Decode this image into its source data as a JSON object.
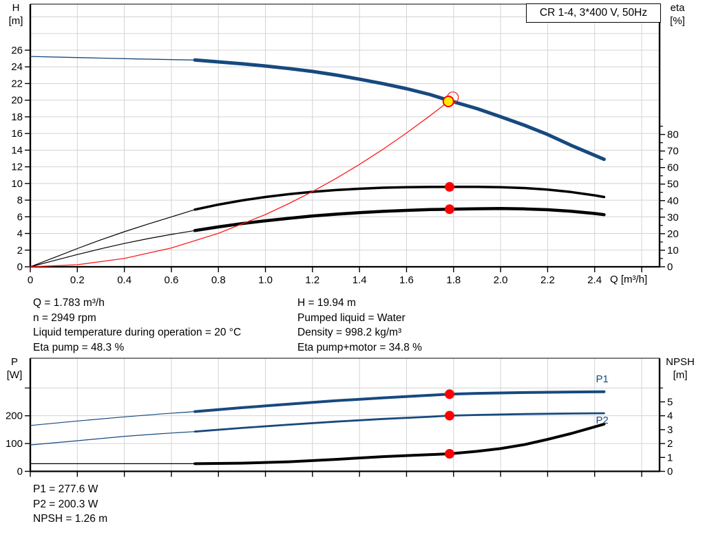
{
  "title_box": "CR 1-4, 3*400 V, 50Hz",
  "axis_titles": {
    "h1": "H",
    "h2": "[m]",
    "eta1": "eta",
    "eta2": "[%]",
    "p1": "P",
    "p2": "[W]",
    "npsh1": "NPSH",
    "npsh2": "[m]",
    "x": "Q [m³/h]"
  },
  "info": {
    "left": [
      "Q = 1.783 m³/h",
      "n = 2949 rpm",
      "Liquid temperature during operation = 20 °C",
      "Eta pump = 48.3 %"
    ],
    "right": [
      "H = 19.94 m",
      "Pumped liquid = Water",
      "Density = 998.2 kg/m³",
      "Eta pump+motor = 34.8 %"
    ],
    "bottom": [
      "P1 = 277.6 W",
      "P2 = 200.3 W",
      "NPSH = 1.26 m"
    ]
  },
  "colors": {
    "blue": "#17497E",
    "black": "#000000",
    "red": "#FF1A1A",
    "dot_red": "#FF0000",
    "duty_yellow": "#FFED00",
    "grid": "#D3D3D3"
  },
  "chart_data": [
    {
      "id": "hq-eta-chart",
      "type": "line",
      "title": "CR 1-4, 3*400 V, 50Hz",
      "xlabel": "Q [m³/h]",
      "ylabel_left": "H [m]",
      "ylabel_right": "eta [%]",
      "x": {
        "range": [
          0,
          2.676
        ],
        "grid": [
          0.2,
          0.4,
          0.6,
          0.8,
          1.0,
          1.2,
          1.4,
          1.6,
          1.8,
          2.0,
          2.2,
          2.4,
          2.6
        ],
        "tick_values": [
          0,
          0.2,
          0.4,
          0.6,
          0.8,
          1.0,
          1.2,
          1.4,
          1.6,
          1.8,
          2.0,
          2.2,
          2.4,
          2.6
        ],
        "tick_labels": [
          "0",
          "0.2",
          "0.4",
          "0.6",
          "0.8",
          "1.0",
          "1.2",
          "1.4",
          "1.6",
          "1.8",
          "2.0",
          "2.2",
          "2.4",
          ""
        ]
      },
      "left": {
        "range": [
          0,
          31.53
        ],
        "tick_values": [
          0,
          2,
          4,
          6,
          8,
          10,
          12,
          14,
          16,
          18,
          20,
          22,
          24,
          26
        ],
        "tick_labels": [
          "0",
          "2",
          "4",
          "6",
          "8",
          "10",
          "12",
          "14",
          "16",
          "18",
          "20",
          "22",
          "24",
          "26"
        ],
        "minor": [],
        "grid": [
          2,
          4,
          6,
          8,
          10,
          12,
          14,
          16,
          18,
          20,
          22,
          24,
          26,
          28,
          30
        ]
      },
      "right": {
        "range": [
          0,
          158.8
        ],
        "tick_values": [
          0,
          10,
          20,
          30,
          40,
          50,
          60,
          70,
          80
        ],
        "tick_labels": [
          "0",
          "10",
          "20",
          "30",
          "40",
          "50",
          "60",
          "70",
          "80"
        ],
        "minor": [
          5,
          15,
          25,
          35,
          45,
          55,
          65,
          75,
          85
        ],
        "grid": []
      },
      "series": [
        {
          "name": "qh-curve-thin",
          "axis": "left",
          "color": "#17497E",
          "width": 1.3,
          "points": [
            [
              0,
              25.25
            ],
            [
              0.15,
              25.15
            ],
            [
              0.3,
              25.05
            ],
            [
              0.45,
              24.95
            ],
            [
              0.6,
              24.87
            ],
            [
              0.7,
              24.82
            ]
          ]
        },
        {
          "name": "qh-curve",
          "axis": "left",
          "color": "#17497E",
          "width": 5,
          "points": [
            [
              0.7,
              24.82
            ],
            [
              0.8,
              24.6
            ],
            [
              0.9,
              24.37
            ],
            [
              1.0,
              24.1
            ],
            [
              1.1,
              23.8
            ],
            [
              1.2,
              23.45
            ],
            [
              1.3,
              23.02
            ],
            [
              1.4,
              22.52
            ],
            [
              1.5,
              21.98
            ],
            [
              1.6,
              21.38
            ],
            [
              1.7,
              20.68
            ],
            [
              1.783,
              19.94
            ],
            [
              1.9,
              18.98
            ],
            [
              2.0,
              18.02
            ],
            [
              2.1,
              17.0
            ],
            [
              2.2,
              15.88
            ],
            [
              2.3,
              14.58
            ],
            [
              2.44,
              12.9
            ]
          ]
        },
        {
          "name": "eta-pump-curve-thin",
          "axis": "right",
          "color": "#000000",
          "width": 1.2,
          "points": [
            [
              0,
              0
            ],
            [
              0.1,
              5.5
            ],
            [
              0.2,
              11
            ],
            [
              0.3,
              16.3
            ],
            [
              0.4,
              21.2
            ],
            [
              0.5,
              25.8
            ],
            [
              0.6,
              30.2
            ],
            [
              0.7,
              34.6
            ]
          ]
        },
        {
          "name": "eta-pump-curve",
          "axis": "right",
          "color": "#000000",
          "width": 3.5,
          "points": [
            [
              0.7,
              34.6
            ],
            [
              0.8,
              37.6
            ],
            [
              0.9,
              40.1
            ],
            [
              1.0,
              42.2
            ],
            [
              1.1,
              43.9
            ],
            [
              1.2,
              45.3
            ],
            [
              1.3,
              46.4
            ],
            [
              1.4,
              47.2
            ],
            [
              1.5,
              47.8
            ],
            [
              1.6,
              48.1
            ],
            [
              1.7,
              48.25
            ],
            [
              1.783,
              48.3
            ],
            [
              1.9,
              48.35
            ],
            [
              2.0,
              48.1
            ],
            [
              2.1,
              47.6
            ],
            [
              2.2,
              46.7
            ],
            [
              2.3,
              45.2
            ],
            [
              2.4,
              43.2
            ],
            [
              2.44,
              42.2
            ]
          ]
        },
        {
          "name": "eta-pump-motor-curve-thin",
          "axis": "right",
          "color": "#000000",
          "width": 1.2,
          "points": [
            [
              0,
              0
            ],
            [
              0.1,
              3.7
            ],
            [
              0.2,
              7.4
            ],
            [
              0.3,
              10.9
            ],
            [
              0.4,
              14.1
            ],
            [
              0.5,
              17.0
            ],
            [
              0.6,
              19.6
            ],
            [
              0.7,
              21.9
            ]
          ]
        },
        {
          "name": "eta-pump-motor-curve",
          "axis": "right",
          "color": "#000000",
          "width": 4.5,
          "points": [
            [
              0.7,
              21.9
            ],
            [
              0.8,
              24.1
            ],
            [
              0.9,
              26.1
            ],
            [
              1.0,
              27.8
            ],
            [
              1.1,
              29.3
            ],
            [
              1.2,
              30.7
            ],
            [
              1.3,
              31.8
            ],
            [
              1.4,
              32.7
            ],
            [
              1.5,
              33.5
            ],
            [
              1.6,
              34.1
            ],
            [
              1.7,
              34.6
            ],
            [
              1.783,
              34.8
            ],
            [
              1.9,
              35.1
            ],
            [
              2.0,
              35.2
            ],
            [
              2.1,
              35.0
            ],
            [
              2.2,
              34.5
            ],
            [
              2.3,
              33.6
            ],
            [
              2.4,
              32.2
            ],
            [
              2.44,
              31.5
            ]
          ]
        },
        {
          "name": "system-curve",
          "axis": "left",
          "color": "#FF1A1A",
          "width": 1.3,
          "points": [
            [
              0,
              0
            ],
            [
              0.2,
              0.25
            ],
            [
              0.4,
              1.0
            ],
            [
              0.6,
              2.26
            ],
            [
              0.8,
              4.01
            ],
            [
              1.0,
              6.27
            ],
            [
              1.1,
              7.59
            ],
            [
              1.2,
              9.03
            ],
            [
              1.3,
              10.6
            ],
            [
              1.4,
              12.29
            ],
            [
              1.5,
              14.11
            ],
            [
              1.6,
              16.06
            ],
            [
              1.7,
              18.13
            ],
            [
              1.783,
              19.94
            ]
          ]
        }
      ],
      "markers": [
        {
          "name": "duty-point-requested",
          "axis": "left",
          "q": 1.797,
          "v": 20.33,
          "r": 8,
          "fill": "none",
          "stroke": "#FF1A1A",
          "stroke_width": 1.2
        },
        {
          "name": "duty-point-actual",
          "axis": "left",
          "q": 1.778,
          "v": 19.85,
          "r": 7.5,
          "fill": "#FFED00",
          "stroke": "#FF0000",
          "stroke_width": 2
        },
        {
          "name": "eta-pump-operating-point",
          "axis": "right",
          "q": 1.783,
          "v": 48.3,
          "r": 7,
          "fill": "#FF0000",
          "stroke": "none",
          "stroke_width": 0
        },
        {
          "name": "eta-pump-motor-operating-point",
          "axis": "right",
          "q": 1.783,
          "v": 34.8,
          "r": 7,
          "fill": "#FF0000",
          "stroke": "none",
          "stroke_width": 0
        }
      ],
      "labels": []
    },
    {
      "id": "power-npsh-chart",
      "type": "line",
      "xlabel": "",
      "ylabel_left": "P [W]",
      "ylabel_right": "NPSH [m]",
      "x": {
        "range": [
          0,
          2.676
        ],
        "grid": [
          0.2,
          0.4,
          0.6,
          0.8,
          1.0,
          1.2,
          1.4,
          1.6,
          1.8,
          2.0,
          2.2,
          2.4,
          2.6
        ],
        "tick_values": [
          0,
          0.2,
          0.4,
          0.6,
          0.8,
          1.0,
          1.2,
          1.4,
          1.6,
          1.8,
          2.0,
          2.2,
          2.4,
          2.6
        ],
        "tick_labels": [
          "",
          "",
          "",
          "",
          "",
          "",
          "",
          "",
          "",
          "",
          "",
          "",
          "",
          ""
        ]
      },
      "left": {
        "range": [
          0,
          407
        ],
        "tick_values": [
          0,
          100,
          200
        ],
        "tick_labels": [
          "0",
          "100",
          "200"
        ],
        "minor": [
          300
        ],
        "grid": [
          100,
          200,
          300
        ]
      },
      "right": {
        "range": [
          0,
          8.14
        ],
        "tick_values": [
          0,
          1,
          2,
          3,
          4,
          5
        ],
        "tick_labels": [
          "0",
          "1",
          "2",
          "3",
          "4",
          "5"
        ],
        "minor": [
          6
        ],
        "grid": []
      },
      "series": [
        {
          "name": "p1-curve-thin",
          "axis": "left",
          "color": "#17497E",
          "width": 1.2,
          "points": [
            [
              0,
              165
            ],
            [
              0.2,
              181
            ],
            [
              0.4,
              196
            ],
            [
              0.55,
              206
            ],
            [
              0.7,
              215
            ]
          ]
        },
        {
          "name": "p1-curve",
          "axis": "left",
          "color": "#17497E",
          "width": 4,
          "points": [
            [
              0.7,
              215
            ],
            [
              0.9,
              229
            ],
            [
              1.1,
              242
            ],
            [
              1.3,
              254
            ],
            [
              1.5,
              264.5
            ],
            [
              1.65,
              271.5
            ],
            [
              1.783,
              277.6
            ],
            [
              1.9,
              280.5
            ],
            [
              2.1,
              283.5
            ],
            [
              2.3,
              285.5
            ],
            [
              2.44,
              286.5
            ]
          ]
        },
        {
          "name": "p2-curve-thin",
          "axis": "left",
          "color": "#17497E",
          "width": 1.2,
          "points": [
            [
              0,
              95
            ],
            [
              0.2,
              110
            ],
            [
              0.4,
              126
            ],
            [
              0.55,
              135
            ],
            [
              0.7,
              143
            ]
          ]
        },
        {
          "name": "p2-curve",
          "axis": "left",
          "color": "#17497E",
          "width": 2.8,
          "points": [
            [
              0.7,
              143
            ],
            [
              0.9,
              156
            ],
            [
              1.1,
              168
            ],
            [
              1.3,
              179
            ],
            [
              1.5,
              188.5
            ],
            [
              1.7,
              196.5
            ],
            [
              1.783,
              200.3
            ],
            [
              1.9,
              203
            ],
            [
              2.1,
              206
            ],
            [
              2.3,
              208
            ],
            [
              2.44,
              209
            ]
          ]
        },
        {
          "name": "npsh-curve-thin",
          "axis": "right",
          "color": "#000000",
          "width": 1.2,
          "points": [
            [
              0,
              0.55
            ],
            [
              0.35,
              0.55
            ],
            [
              0.7,
              0.55
            ]
          ]
        },
        {
          "name": "npsh-curve",
          "axis": "right",
          "color": "#000000",
          "width": 4,
          "points": [
            [
              0.7,
              0.55
            ],
            [
              0.9,
              0.59
            ],
            [
              1.1,
              0.69
            ],
            [
              1.3,
              0.86
            ],
            [
              1.5,
              1.06
            ],
            [
              1.65,
              1.17
            ],
            [
              1.783,
              1.26
            ],
            [
              1.9,
              1.44
            ],
            [
              2.0,
              1.64
            ],
            [
              2.1,
              1.92
            ],
            [
              2.2,
              2.3
            ],
            [
              2.3,
              2.72
            ],
            [
              2.4,
              3.2
            ],
            [
              2.44,
              3.4
            ]
          ]
        }
      ],
      "markers": [
        {
          "name": "p1-operating-point",
          "axis": "left",
          "q": 1.783,
          "v": 277.6,
          "r": 7,
          "fill": "#FF0000",
          "stroke": "none",
          "stroke_width": 0
        },
        {
          "name": "p2-operating-point",
          "axis": "left",
          "q": 1.783,
          "v": 200.3,
          "r": 7,
          "fill": "#FF0000",
          "stroke": "none",
          "stroke_width": 0
        },
        {
          "name": "npsh-operating-point",
          "axis": "right",
          "q": 1.783,
          "v": 1.26,
          "r": 7,
          "fill": "#FF0000",
          "stroke": "none",
          "stroke_width": 0
        }
      ],
      "labels": [
        {
          "name": "p1-curve-label",
          "text": "P1",
          "axis": "left",
          "q": 2.405,
          "v": 320,
          "color": "#17497E"
        },
        {
          "name": "p2-curve-label",
          "text": "P2",
          "axis": "left",
          "q": 2.405,
          "v": 172,
          "color": "#17497E"
        }
      ]
    }
  ]
}
